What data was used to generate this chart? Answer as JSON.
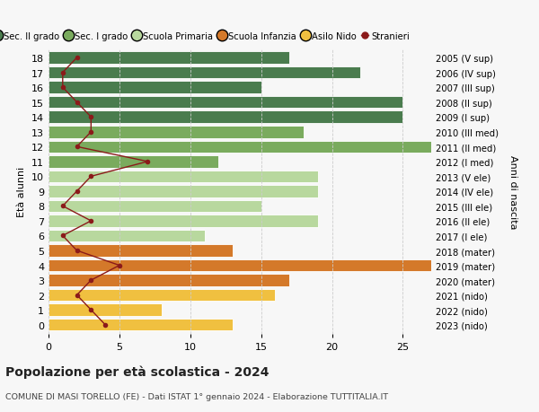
{
  "ages": [
    18,
    17,
    16,
    15,
    14,
    13,
    12,
    11,
    10,
    9,
    8,
    7,
    6,
    5,
    4,
    3,
    2,
    1,
    0
  ],
  "years": [
    "2005 (V sup)",
    "2006 (IV sup)",
    "2007 (III sup)",
    "2008 (II sup)",
    "2009 (I sup)",
    "2010 (III med)",
    "2011 (II med)",
    "2012 (I med)",
    "2013 (V ele)",
    "2014 (IV ele)",
    "2015 (III ele)",
    "2016 (II ele)",
    "2017 (I ele)",
    "2018 (mater)",
    "2019 (mater)",
    "2020 (mater)",
    "2021 (nido)",
    "2022 (nido)",
    "2023 (nido)"
  ],
  "bar_values": [
    17,
    22,
    15,
    25,
    25,
    18,
    27,
    12,
    19,
    19,
    15,
    19,
    11,
    13,
    27,
    17,
    16,
    8,
    13
  ],
  "bar_colors": [
    "#4a7c4e",
    "#4a7c4e",
    "#4a7c4e",
    "#4a7c4e",
    "#4a7c4e",
    "#7aab5e",
    "#7aab5e",
    "#7aab5e",
    "#b8d89e",
    "#b8d89e",
    "#b8d89e",
    "#b8d89e",
    "#b8d89e",
    "#d4792a",
    "#d4792a",
    "#d4792a",
    "#f0c040",
    "#f0c040",
    "#f0c040"
  ],
  "stranieri_values": [
    2,
    1,
    1,
    2,
    3,
    3,
    2,
    7,
    3,
    2,
    1,
    3,
    1,
    2,
    5,
    3,
    2,
    3,
    4
  ],
  "stranieri_color": "#8b1a1a",
  "legend_labels": [
    "Sec. II grado",
    "Sec. I grado",
    "Scuola Primaria",
    "Scuola Infanzia",
    "Asilo Nido",
    "Stranieri"
  ],
  "legend_colors": [
    "#4a7c4e",
    "#7aab5e",
    "#b8d89e",
    "#d4792a",
    "#f0c040",
    "#8b1a1a"
  ],
  "xlim": [
    0,
    27
  ],
  "xticks": [
    0,
    5,
    10,
    15,
    20,
    25
  ],
  "ylabel_left": "Età alunni",
  "ylabel_right": "Anni di nascita",
  "title": "Popolazione per età scolastica - 2024",
  "subtitle": "COMUNE DI MASI TORELLO (FE) - Dati ISTAT 1° gennaio 2024 - Elaborazione TUTTITALIA.IT",
  "bg_color": "#f7f7f7",
  "bar_height": 0.82
}
